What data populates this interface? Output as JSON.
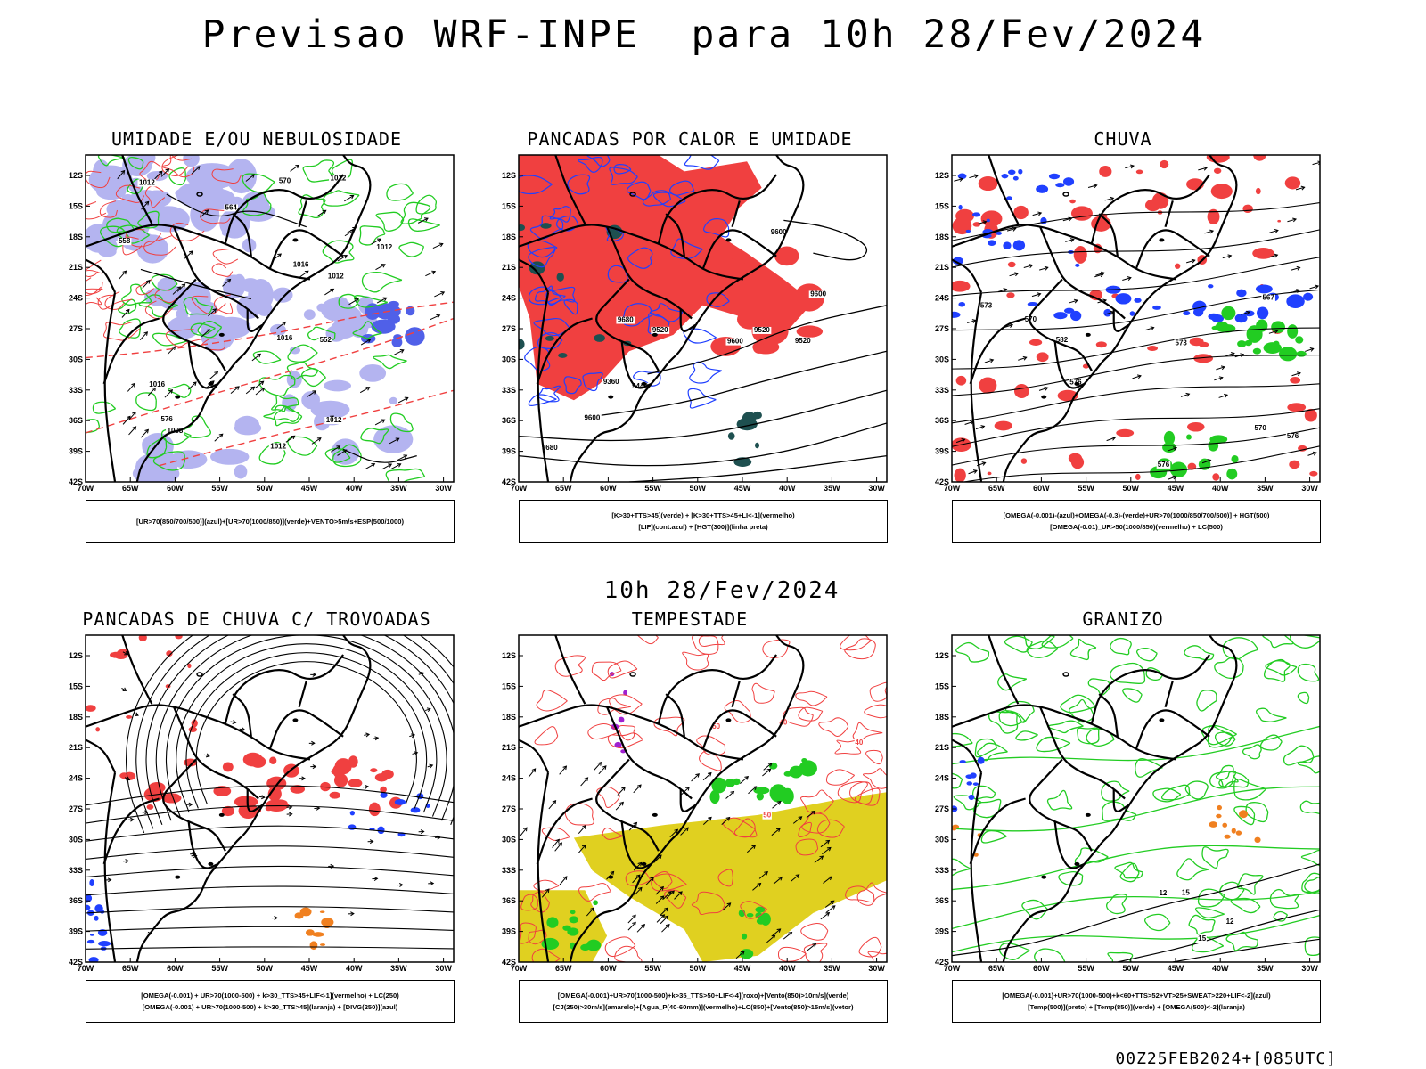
{
  "header": {
    "title": "Previsao WRF-INPE  para 10h 28/Fev/2024",
    "subtitle": "10h 28/Fev/2024",
    "footer": "00Z25FEB2024+[085UTC]"
  },
  "axes": {
    "lat_labels": [
      "12S",
      "15S",
      "18S",
      "21S",
      "24S",
      "27S",
      "30S",
      "33S",
      "36S",
      "39S",
      "42S"
    ],
    "lon_labels": [
      "70W",
      "65W",
      "60W",
      "55W",
      "50W",
      "45W",
      "40W",
      "35W",
      "30W"
    ]
  },
  "colors": {
    "red": "#f04040",
    "green": "#22cc22",
    "blue": "#2040ff",
    "lavender": "#b4b4f0",
    "darkteal": "#1e5050",
    "yellow": "#e0d020",
    "orange": "#f08020",
    "purple": "#a020d0"
  },
  "panels": [
    {
      "id": "umidade",
      "title": "UMIDADE E/OU NEBULOSIDADE",
      "legend": [
        "[UR>70(850/700/500)](azul)+[UR>70(1000/850)](verde)+VENTO>5m/s+ESP(500/1000)"
      ],
      "contour_labels": [
        "1012",
        "1012",
        "1016",
        "1012",
        "1012",
        "1016",
        "1008",
        "1012",
        "1016",
        "576",
        "570",
        "564",
        "558",
        "552",
        "1012"
      ],
      "icon": "humidity-cloudiness-map"
    },
    {
      "id": "pancadas-calor",
      "title": "PANCADAS POR CALOR E UMIDADE",
      "legend": [
        "[K>30+TTS>45](verde) + [K>30+TTS>45+LI<-1](vermelho)",
        "[LIF](cont.azul) + [HGT(300)](linha preta)"
      ],
      "contour_labels": [
        "9600",
        "9600",
        "9680",
        "9680",
        "9600",
        "9600",
        "9520",
        "9520",
        "9440",
        "9360",
        "9520"
      ],
      "icon": "heat-showers-map"
    },
    {
      "id": "chuva",
      "title": "CHUVA",
      "legend": [
        "[OMEGA(-0.001)-(azul)+OMEGA(-0.3)-(verde)+UR>70(1000/850/700/500)] + HGT(500)",
        "[OMEGA(-0.01)_UR>50(1000/850)(vermelho) + LC(500)"
      ],
      "contour_labels": [
        "582",
        "576",
        "576",
        "573",
        "570",
        "567",
        "570",
        "573",
        "576"
      ],
      "icon": "rain-map"
    },
    {
      "id": "trovoadas",
      "title": "PANCADAS DE CHUVA C/ TROVOADAS",
      "legend": [
        "[OMEGA(-0.001) + UR>70(1000-500) + k>30_TTS>45+LIF<-1](vermelho) + LC(250)",
        "[OMEGA(-0.001) + UR>70(1000-500) + k>30_TTS>45](laranja) + [DIVG(250)](azul)"
      ],
      "contour_labels": [],
      "icon": "thunderstorm-showers-map"
    },
    {
      "id": "tempestade",
      "title": "TEMPESTADE",
      "legend": [
        "[OMEGA(-0.001)+UR>70(1000-500)+k>35_TTS>50+LIF<-4](roxo)+[Vento(850)>10m/s](verde)",
        "[CJ(250)>30m/s](amarelo)+[Agua_P(40-60mm)](vermelho)+LC(850)+[Vento(850)>15m/s](vetor)"
      ],
      "contour_labels": [
        "40",
        "50",
        "50",
        "40"
      ],
      "icon": "storm-map"
    },
    {
      "id": "granizo",
      "title": "GRANIZO",
      "legend": [
        "[OMEGA(-0.001)+UR>70(1000-500)+k<60+TTS>52+VT>25+SWEAT>220+LIF<-2](azul)",
        "[Temp(500)](preto) + [Temp(850)](verde) + [OMEGA(500)<-2](laranja)"
      ],
      "contour_labels": [
        "12",
        "15",
        "12",
        "15"
      ],
      "icon": "hail-map"
    }
  ]
}
